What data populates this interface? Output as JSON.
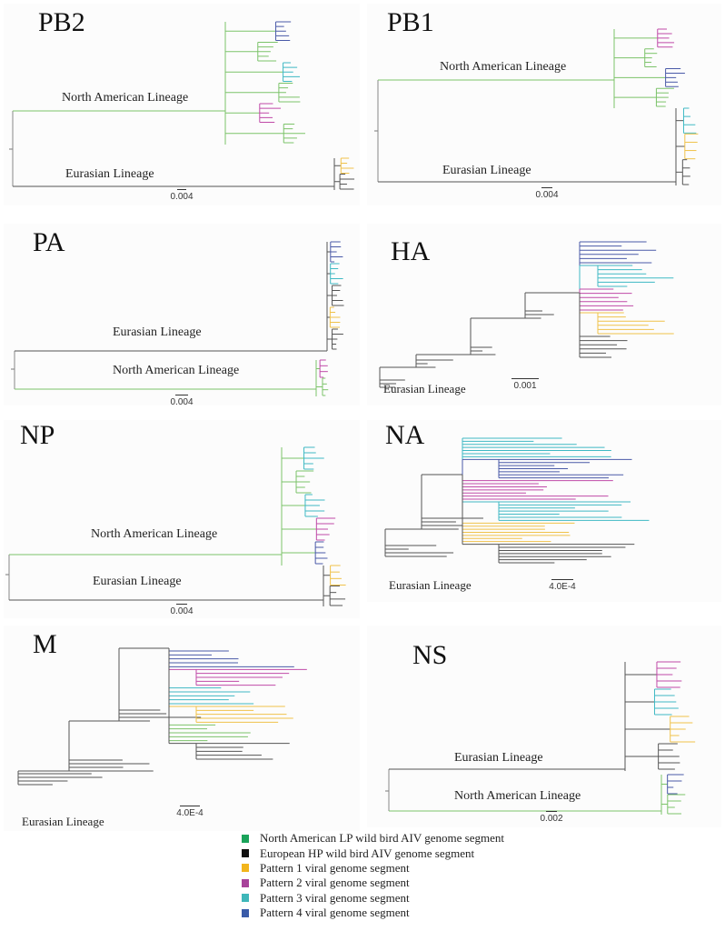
{
  "figure": {
    "colors": {
      "na_lp": "#7cc36a",
      "eu_hp": "#555555",
      "pattern1": "#f0c24a",
      "pattern2": "#c04aa8",
      "pattern3": "#3fb9c4",
      "pattern4": "#4a5aa8"
    },
    "panels": [
      {
        "id": "pb2",
        "title": "PB2",
        "scale_label": "0.004",
        "lineages": [
          {
            "label": "North American Lineage",
            "color_key": "na_lp",
            "position": "upper"
          },
          {
            "label": "Eurasian Lineage",
            "color_key": "eu_hp",
            "position": "lower"
          }
        ],
        "clades": [
          "pattern4",
          "na_lp",
          "pattern3",
          "na_lp",
          "pattern2",
          "na_lp",
          "pattern1",
          "eu_hp"
        ]
      },
      {
        "id": "pb1",
        "title": "PB1",
        "scale_label": "0.004",
        "lineages": [
          {
            "label": "North American Lineage",
            "color_key": "na_lp",
            "position": "upper"
          },
          {
            "label": "Eurasian Lineage",
            "color_key": "eu_hp",
            "position": "lower"
          }
        ],
        "clades": [
          "pattern2",
          "na_lp",
          "pattern4",
          "na_lp",
          "pattern3",
          "pattern1",
          "eu_hp"
        ]
      },
      {
        "id": "pa",
        "title": "PA",
        "scale_label": "0.004",
        "lineages": [
          {
            "label": "Eurasian Lineage",
            "color_key": "eu_hp",
            "position": "upper"
          },
          {
            "label": "North American Lineage",
            "color_key": "na_lp",
            "position": "lower"
          }
        ],
        "clades": [
          "pattern4",
          "pattern3",
          "eu_hp",
          "pattern1",
          "eu_hp",
          "pattern2",
          "na_lp"
        ]
      },
      {
        "id": "ha",
        "title": "HA",
        "scale_label": "0.001",
        "lineages": [
          {
            "label": "Eurasian Lineage",
            "color_key": "eu_hp",
            "position": "bottom-left"
          }
        ],
        "clades": [
          "pattern4",
          "pattern3",
          "pattern2",
          "pattern1",
          "eu_hp"
        ]
      },
      {
        "id": "np",
        "title": "NP",
        "scale_label": "0.004",
        "lineages": [
          {
            "label": "North American Lineage",
            "color_key": "na_lp",
            "position": "upper"
          },
          {
            "label": "Eurasian Lineage",
            "color_key": "eu_hp",
            "position": "lower"
          }
        ],
        "clades": [
          "pattern3",
          "na_lp",
          "pattern3",
          "pattern2",
          "pattern4",
          "pattern1",
          "eu_hp"
        ]
      },
      {
        "id": "na",
        "title": "NA",
        "scale_label": "4.0E-4",
        "lineages": [
          {
            "label": "Eurasian Lineage",
            "color_key": "eu_hp",
            "position": "bottom-left"
          }
        ],
        "clades": [
          "pattern3",
          "pattern4",
          "pattern2",
          "pattern3",
          "pattern1",
          "eu_hp"
        ]
      },
      {
        "id": "m",
        "title": "M",
        "scale_label": "4.0E-4",
        "lineages": [
          {
            "label": "Eurasian Lineage",
            "color_key": "eu_hp",
            "position": "bottom-left"
          }
        ],
        "clades": [
          "pattern4",
          "pattern2",
          "pattern3",
          "pattern1",
          "na_lp",
          "eu_hp"
        ]
      },
      {
        "id": "ns",
        "title": "NS",
        "scale_label": "0.002",
        "lineages": [
          {
            "label": "Eurasian Lineage",
            "color_key": "eu_hp",
            "position": "upper"
          },
          {
            "label": "North American Lineage",
            "color_key": "na_lp",
            "position": "lower"
          }
        ],
        "clades": [
          "pattern2",
          "pattern3",
          "pattern1",
          "eu_hp",
          "pattern4",
          "na_lp"
        ]
      }
    ],
    "legend": [
      {
        "label": "North American LP wild bird AIV genome segment",
        "color": "#1aa35a"
      },
      {
        "label": "European HP wild bird AIV genome segment",
        "color": "#111111"
      },
      {
        "label": "Pattern 1 viral genome segment",
        "color": "#f2b51c"
      },
      {
        "label": "Pattern 2 viral genome segment",
        "color": "#a8439a"
      },
      {
        "label": "Pattern 3 viral genome segment",
        "color": "#3fb7b9"
      },
      {
        "label": "Pattern 4 viral genome segment",
        "color": "#3a5ba8"
      }
    ]
  }
}
